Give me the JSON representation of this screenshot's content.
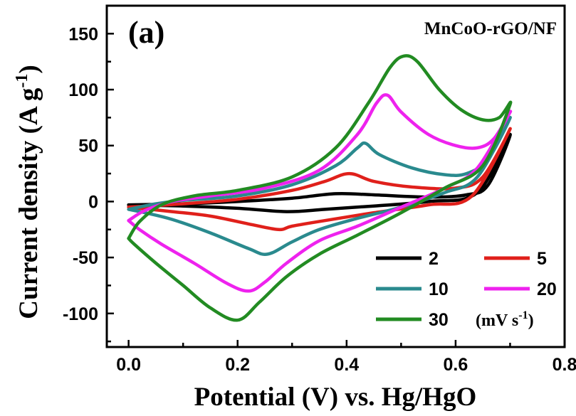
{
  "chart_data": {
    "type": "line",
    "panel_label": "(a)",
    "sample_label": "MnCoO-rGO/NF",
    "xlabel": "Potential (V) vs. Hg/HgO",
    "ylabel_main": "Current density (A g",
    "ylabel_sup": "-1",
    "ylabel_end": ")",
    "xlim": [
      -0.04,
      0.8
    ],
    "ylim": [
      -130,
      175
    ],
    "xticks": [
      0.0,
      0.2,
      0.4,
      0.6,
      0.8
    ],
    "xtick_labels": [
      "0.0",
      "0.2",
      "0.4",
      "0.6",
      "0.8"
    ],
    "yticks": [
      -100,
      -50,
      0,
      50,
      100,
      150
    ],
    "ytick_labels": [
      "-100",
      "-50",
      "0",
      "50",
      "100",
      "150"
    ],
    "legend_position": "bottom-right",
    "legend_unit_main": "(mV s",
    "legend_unit_sup": "-1",
    "legend_unit_end": ")",
    "series": [
      {
        "name": "2",
        "color": "#000000",
        "anodic": [
          [
            0.0,
            -3
          ],
          [
            0.1,
            -2
          ],
          [
            0.2,
            0
          ],
          [
            0.3,
            3
          ],
          [
            0.38,
            7
          ],
          [
            0.45,
            6
          ],
          [
            0.55,
            4
          ],
          [
            0.62,
            6
          ],
          [
            0.66,
            15
          ],
          [
            0.7,
            60
          ]
        ],
        "cathodic": [
          [
            0.7,
            60
          ],
          [
            0.64,
            8
          ],
          [
            0.55,
            0
          ],
          [
            0.45,
            -4
          ],
          [
            0.36,
            -7
          ],
          [
            0.29,
            -9
          ],
          [
            0.2,
            -6
          ],
          [
            0.1,
            -4
          ],
          [
            0.0,
            -3
          ]
        ]
      },
      {
        "name": "5",
        "color": "#e0201b",
        "anodic": [
          [
            0.0,
            -5
          ],
          [
            0.1,
            -2
          ],
          [
            0.2,
            2
          ],
          [
            0.3,
            10
          ],
          [
            0.36,
            18
          ],
          [
            0.405,
            25
          ],
          [
            0.45,
            18
          ],
          [
            0.52,
            13
          ],
          [
            0.6,
            12
          ],
          [
            0.65,
            22
          ],
          [
            0.7,
            65
          ]
        ],
        "cathodic": [
          [
            0.7,
            65
          ],
          [
            0.63,
            5
          ],
          [
            0.55,
            -3
          ],
          [
            0.45,
            -10
          ],
          [
            0.36,
            -17
          ],
          [
            0.3,
            -22
          ],
          [
            0.275,
            -25
          ],
          [
            0.22,
            -20
          ],
          [
            0.15,
            -13
          ],
          [
            0.08,
            -9
          ],
          [
            0.0,
            -5
          ]
        ]
      },
      {
        "name": "10",
        "color": "#2a8a8e",
        "anodic": [
          [
            0.0,
            -7
          ],
          [
            0.05,
            -2
          ],
          [
            0.1,
            1
          ],
          [
            0.2,
            5
          ],
          [
            0.3,
            15
          ],
          [
            0.38,
            32
          ],
          [
            0.42,
            48
          ],
          [
            0.435,
            52
          ],
          [
            0.46,
            42
          ],
          [
            0.52,
            30
          ],
          [
            0.58,
            24
          ],
          [
            0.62,
            25
          ],
          [
            0.66,
            38
          ],
          [
            0.7,
            75
          ]
        ],
        "cathodic": [
          [
            0.7,
            75
          ],
          [
            0.64,
            22
          ],
          [
            0.58,
            8
          ],
          [
            0.5,
            -5
          ],
          [
            0.42,
            -15
          ],
          [
            0.35,
            -25
          ],
          [
            0.3,
            -36
          ],
          [
            0.255,
            -47
          ],
          [
            0.22,
            -42
          ],
          [
            0.15,
            -28
          ],
          [
            0.08,
            -16
          ],
          [
            0.03,
            -10
          ],
          [
            0.0,
            -7
          ]
        ]
      },
      {
        "name": "20",
        "color": "#ee22ee",
        "anodic": [
          [
            0.0,
            -17
          ],
          [
            0.03,
            -8
          ],
          [
            0.08,
            0
          ],
          [
            0.15,
            5
          ],
          [
            0.25,
            12
          ],
          [
            0.35,
            28
          ],
          [
            0.42,
            60
          ],
          [
            0.455,
            88
          ],
          [
            0.475,
            95
          ],
          [
            0.5,
            80
          ],
          [
            0.55,
            60
          ],
          [
            0.6,
            50
          ],
          [
            0.64,
            48
          ],
          [
            0.67,
            56
          ],
          [
            0.7,
            80
          ]
        ],
        "cathodic": [
          [
            0.7,
            80
          ],
          [
            0.64,
            30
          ],
          [
            0.58,
            12
          ],
          [
            0.5,
            -5
          ],
          [
            0.42,
            -22
          ],
          [
            0.35,
            -35
          ],
          [
            0.29,
            -55
          ],
          [
            0.25,
            -72
          ],
          [
            0.22,
            -80
          ],
          [
            0.18,
            -73
          ],
          [
            0.12,
            -55
          ],
          [
            0.06,
            -38
          ],
          [
            0.02,
            -25
          ],
          [
            0.0,
            -17
          ]
        ]
      },
      {
        "name": "30",
        "color": "#228b22",
        "anodic": [
          [
            0.0,
            -33
          ],
          [
            0.02,
            -18
          ],
          [
            0.06,
            -3
          ],
          [
            0.12,
            5
          ],
          [
            0.2,
            10
          ],
          [
            0.3,
            22
          ],
          [
            0.38,
            48
          ],
          [
            0.44,
            88
          ],
          [
            0.48,
            120
          ],
          [
            0.505,
            130
          ],
          [
            0.53,
            125
          ],
          [
            0.57,
            100
          ],
          [
            0.61,
            82
          ],
          [
            0.65,
            73
          ],
          [
            0.68,
            75
          ],
          [
            0.7,
            87
          ]
        ],
        "cathodic": [
          [
            0.7,
            87
          ],
          [
            0.65,
            32
          ],
          [
            0.58,
            12
          ],
          [
            0.5,
            -10
          ],
          [
            0.42,
            -30
          ],
          [
            0.35,
            -47
          ],
          [
            0.29,
            -67
          ],
          [
            0.24,
            -90
          ],
          [
            0.2,
            -106
          ],
          [
            0.15,
            -95
          ],
          [
            0.1,
            -75
          ],
          [
            0.05,
            -55
          ],
          [
            0.01,
            -38
          ],
          [
            0.0,
            -33
          ]
        ]
      }
    ]
  }
}
